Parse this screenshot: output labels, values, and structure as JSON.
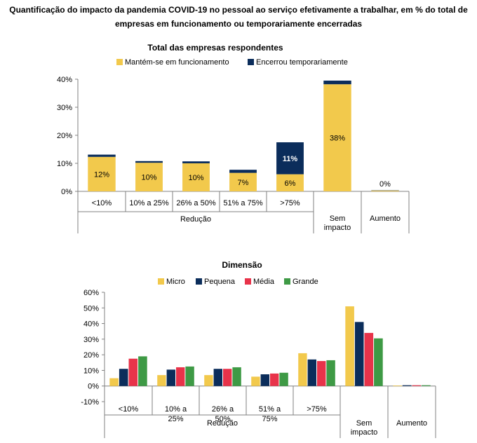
{
  "main_title": {
    "line1": "Quantificação do impacto da pandemia COVID-19 no pessoal ao serviço efetivamente a trabalhar, em % do total de",
    "line2": "empresas em funcionamento ou temporariamente encerradas"
  },
  "colors": {
    "yellow": "#F2C94C",
    "navy": "#0B2D5B",
    "red": "#E8334A",
    "green": "#3E9A45",
    "axis": "#808080",
    "grid": "#d9d9d9"
  },
  "chart_data": [
    {
      "type": "bar",
      "stacked": true,
      "title": "Total das empresas respondentes",
      "categories": [
        "<10%",
        "10% a 25%",
        "26% a 50%",
        "51% a 75%",
        ">75%",
        "Sem impacto",
        "Aumento"
      ],
      "category_groups": [
        {
          "label": "Redução",
          "categories": [
            "<10%",
            "10% a 25%",
            "26% a 50%",
            "51% a 75%",
            ">75%"
          ]
        }
      ],
      "series": [
        {
          "name": "Mantém-se em funcionamento",
          "color": "#F2C94C",
          "values": [
            12.3,
            10.2,
            10.0,
            6.6,
            6.1,
            38.2,
            0.3
          ],
          "labels": [
            "12%",
            "10%",
            "10%",
            "7%",
            "6%",
            "38%",
            "0%"
          ]
        },
        {
          "name": "Encerrou temporariamente",
          "color": "#0B2D5B",
          "values": [
            0.8,
            0.6,
            0.7,
            1.1,
            11.4,
            1.3,
            0.1
          ],
          "labels": [
            "",
            "",
            "",
            "",
            "11%",
            "",
            ""
          ]
        }
      ],
      "ylim": [
        0,
        40
      ],
      "yticks": [
        "0%",
        "10%",
        "20%",
        "30%",
        "40%"
      ],
      "legend": "top"
    },
    {
      "type": "bar",
      "stacked": false,
      "title": "Dimensão",
      "categories": [
        "<10%",
        "10% a 25%",
        "26% a 50%",
        "51% a 75%",
        ">75%",
        "Sem impacto",
        "Aumento"
      ],
      "category_groups": [
        {
          "label": "Redução",
          "categories": [
            "<10%",
            "10% a 25%",
            "26% a 50%",
            "51% a 75%",
            ">75%"
          ]
        }
      ],
      "series": [
        {
          "name": "Micro",
          "color": "#F2C94C",
          "values": [
            5,
            7,
            7,
            6,
            21,
            51,
            0.3
          ]
        },
        {
          "name": "Pequena",
          "color": "#0B2D5B",
          "values": [
            11,
            10.5,
            11,
            7.5,
            17,
            41,
            0.5
          ]
        },
        {
          "name": "Média",
          "color": "#E8334A",
          "values": [
            17.5,
            12,
            11,
            8,
            16,
            34,
            0.5
          ]
        },
        {
          "name": "Grande",
          "color": "#3E9A45",
          "values": [
            19,
            12.5,
            12,
            8.5,
            16.5,
            30.5,
            0.5
          ]
        }
      ],
      "ylim": [
        -10,
        60
      ],
      "yticks": [
        "-10%",
        "0%",
        "10%",
        "20%",
        "30%",
        "40%",
        "50%",
        "60%"
      ],
      "legend": "top"
    }
  ]
}
